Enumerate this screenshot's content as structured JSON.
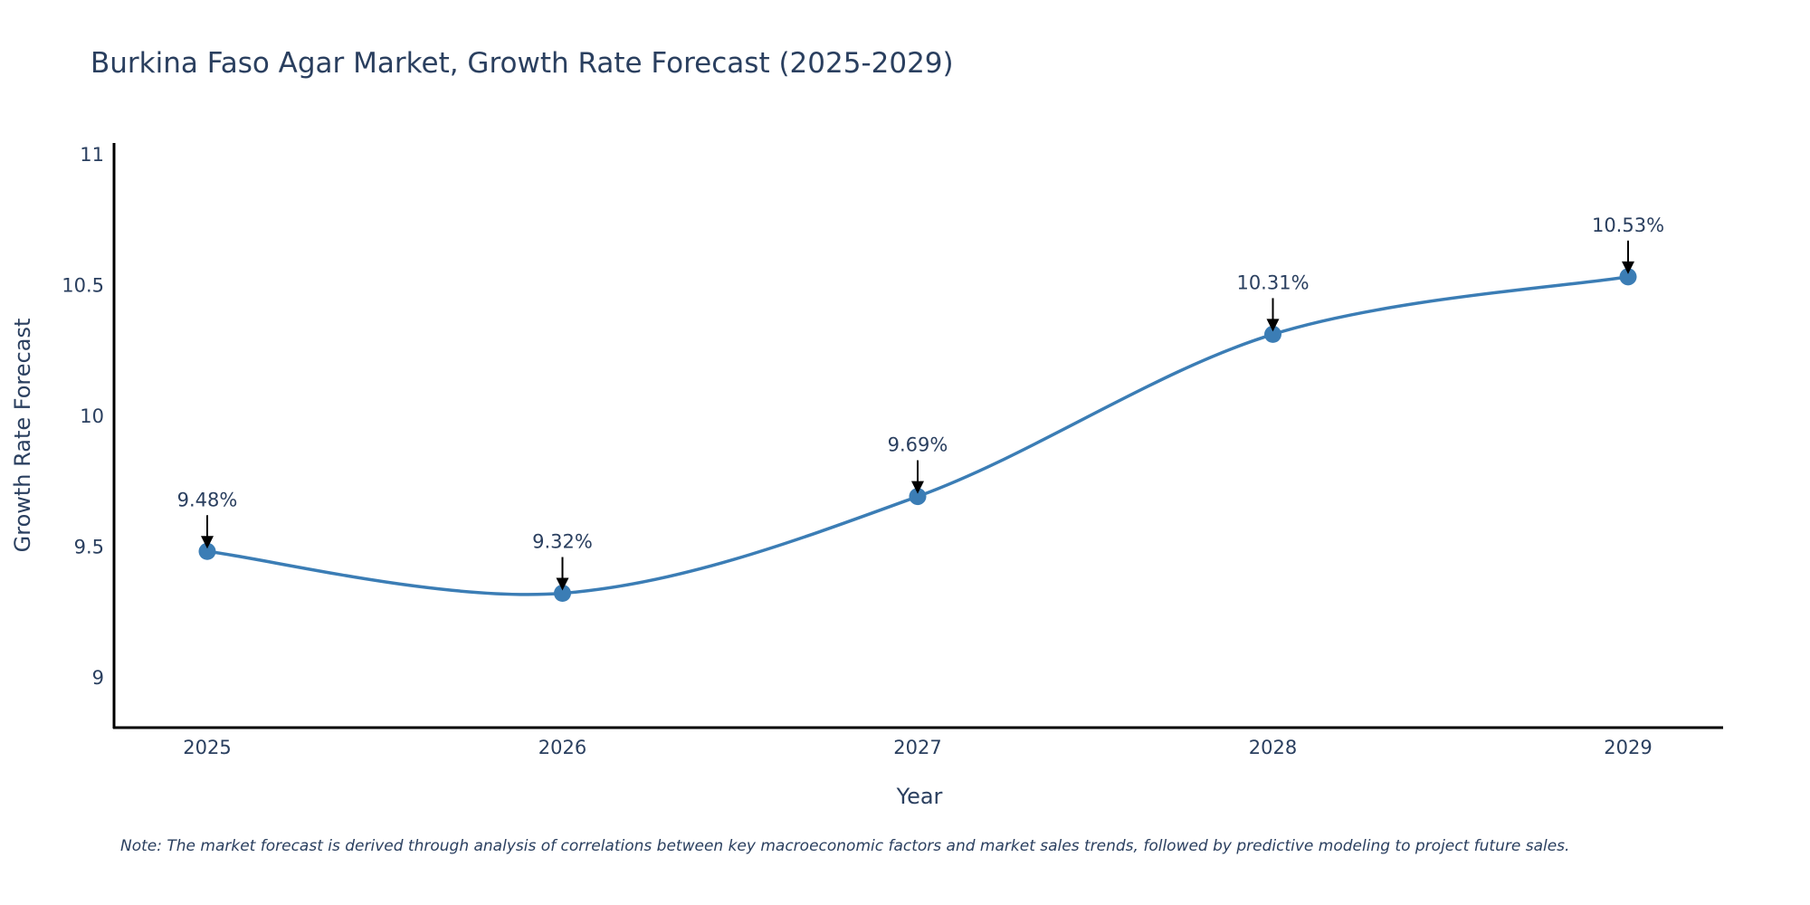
{
  "chart_data": {
    "type": "line",
    "title": "Burkina Faso Agar Market, Growth Rate Forecast (2025-2029)",
    "xlabel": "Year",
    "ylabel": "Growth Rate Forecast",
    "categories": [
      "2025",
      "2026",
      "2027",
      "2028",
      "2029"
    ],
    "series": [
      {
        "name": "Growth Rate Forecast",
        "values": [
          9.48,
          9.32,
          9.69,
          10.31,
          10.53
        ],
        "color": "#3b7db5"
      }
    ],
    "data_labels": [
      "9.48%",
      "9.32%",
      "9.69%",
      "10.31%",
      "10.53%"
    ],
    "ylim": [
      8.8,
      11.05
    ],
    "yticks": [
      9,
      9.5,
      10,
      10.5,
      11
    ],
    "ytick_labels": [
      "9",
      "9.5",
      "10",
      "10.5",
      "11"
    ],
    "grid": false,
    "note": "Note: The market forecast is derived through analysis of correlations between key macroeconomic factors and market sales trends, followed by predictive modeling to project future sales."
  }
}
